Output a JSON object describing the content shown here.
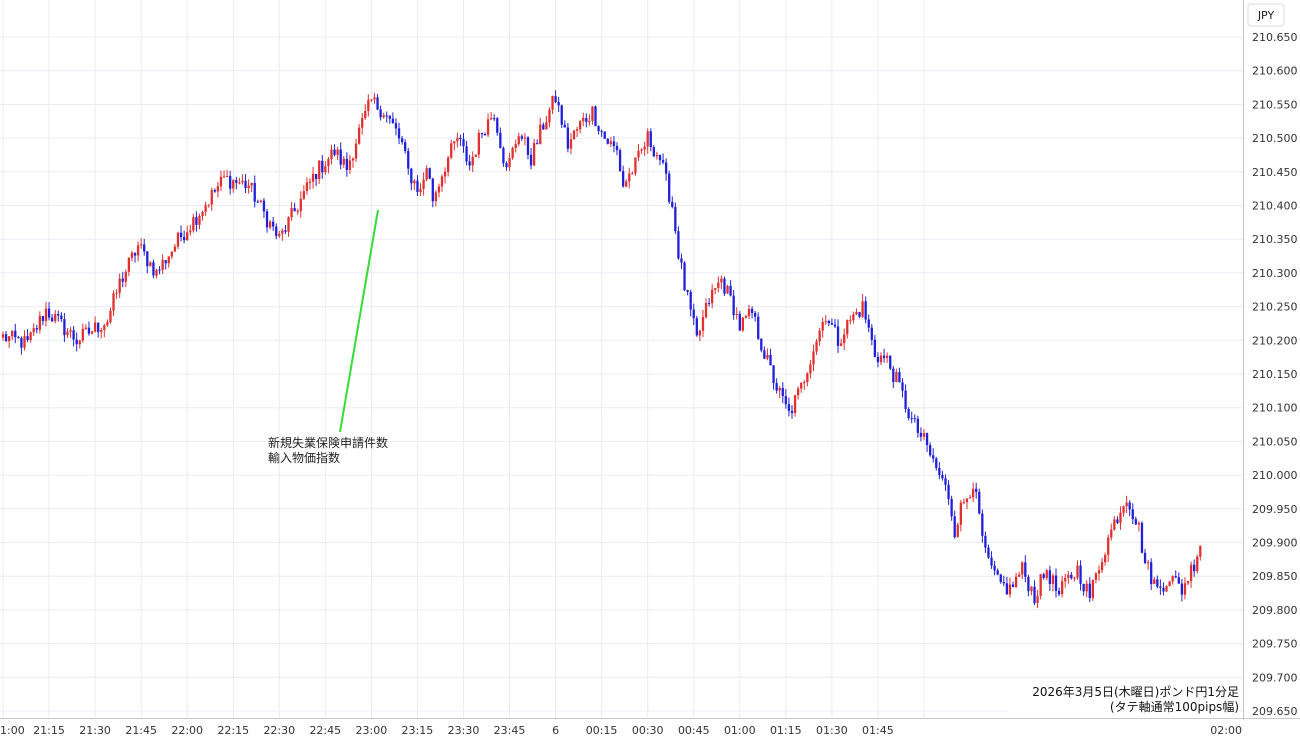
{
  "chart_data": {
    "type": "candlestick",
    "currency_label": "JPY",
    "x_tick_labels": [
      "1:00",
      "21:15",
      "21:30",
      "21:45",
      "22:00",
      "22:15",
      "22:30",
      "22:45",
      "23:00",
      "23:15",
      "23:30",
      "23:45",
      "6",
      "00:15",
      "00:30",
      "00:45",
      "01:00",
      "01:15",
      "01:30",
      "01:45",
      "02:00"
    ],
    "y_range": [
      209.65,
      210.65
    ],
    "y_tick_labels": [
      "210.650",
      "210.600",
      "210.550",
      "210.500",
      "210.450",
      "210.400",
      "210.350",
      "210.300",
      "210.250",
      "210.200",
      "210.150",
      "210.100",
      "210.050",
      "210.000",
      "209.950",
      "209.900",
      "209.850",
      "209.800",
      "209.750",
      "209.700",
      "209.650"
    ],
    "grid": true,
    "minutes_per_candle": 1,
    "up_color": "#e03030",
    "down_color": "#2020d8",
    "annotation": {
      "line_color": "#33dd33",
      "lines": [
        "新規失業保険申請件数",
        "輸入物価指数"
      ]
    },
    "caption": {
      "line1": "2026年3月5日(木曜日)ポンド円1分足",
      "line2": "(タテ軸通常100pips幅)"
    },
    "price_path": [
      [
        0,
        210.205
      ],
      [
        8,
        210.195
      ],
      [
        14,
        210.245
      ],
      [
        24,
        210.2
      ],
      [
        34,
        210.23
      ],
      [
        38,
        210.285
      ],
      [
        44,
        210.34
      ],
      [
        50,
        210.3
      ],
      [
        58,
        210.355
      ],
      [
        64,
        210.39
      ],
      [
        72,
        210.44
      ],
      [
        80,
        210.43
      ],
      [
        86,
        210.38
      ],
      [
        90,
        210.35
      ],
      [
        96,
        210.4
      ],
      [
        102,
        210.45
      ],
      [
        108,
        210.48
      ],
      [
        112,
        210.455
      ],
      [
        116,
        210.51
      ],
      [
        120,
        210.555
      ],
      [
        124,
        210.54
      ],
      [
        128,
        210.51
      ],
      [
        130,
        210.49
      ],
      [
        132,
        210.45
      ],
      [
        136,
        210.42
      ],
      [
        138,
        210.46
      ],
      [
        140,
        210.41
      ],
      [
        144,
        210.46
      ],
      [
        148,
        210.5
      ],
      [
        152,
        210.46
      ],
      [
        156,
        210.51
      ],
      [
        160,
        210.54
      ],
      [
        164,
        210.45
      ],
      [
        168,
        210.51
      ],
      [
        172,
        210.47
      ],
      [
        176,
        210.52
      ],
      [
        180,
        210.56
      ],
      [
        184,
        210.49
      ],
      [
        188,
        210.52
      ],
      [
        192,
        210.54
      ],
      [
        196,
        210.5
      ],
      [
        200,
        210.48
      ],
      [
        202,
        210.43
      ],
      [
        206,
        210.46
      ],
      [
        210,
        210.5
      ],
      [
        214,
        210.47
      ],
      [
        218,
        210.4
      ],
      [
        220,
        210.33
      ],
      [
        222,
        210.28
      ],
      [
        226,
        210.2
      ],
      [
        230,
        210.26
      ],
      [
        234,
        210.29
      ],
      [
        238,
        210.25
      ],
      [
        240,
        210.22
      ],
      [
        244,
        210.24
      ],
      [
        248,
        210.18
      ],
      [
        252,
        210.13
      ],
      [
        256,
        210.09
      ],
      [
        260,
        210.13
      ],
      [
        264,
        210.19
      ],
      [
        268,
        210.24
      ],
      [
        272,
        210.2
      ],
      [
        276,
        210.23
      ],
      [
        280,
        210.25
      ],
      [
        284,
        210.18
      ],
      [
        288,
        210.17
      ],
      [
        292,
        210.13
      ],
      [
        296,
        210.08
      ],
      [
        300,
        210.05
      ],
      [
        304,
        210.01
      ],
      [
        308,
        209.97
      ],
      [
        310,
        209.92
      ],
      [
        312,
        209.95
      ],
      [
        316,
        209.99
      ],
      [
        320,
        209.88
      ],
      [
        324,
        209.84
      ],
      [
        328,
        209.83
      ],
      [
        332,
        209.86
      ],
      [
        336,
        209.82
      ],
      [
        340,
        209.86
      ],
      [
        344,
        209.82
      ],
      [
        346,
        209.84
      ],
      [
        350,
        209.86
      ],
      [
        354,
        209.82
      ],
      [
        358,
        209.88
      ],
      [
        362,
        209.93
      ],
      [
        366,
        209.97
      ],
      [
        370,
        209.92
      ],
      [
        372,
        209.87
      ],
      [
        376,
        209.83
      ],
      [
        380,
        209.85
      ],
      [
        384,
        209.83
      ],
      [
        388,
        209.87
      ],
      [
        390,
        209.9
      ]
    ]
  }
}
